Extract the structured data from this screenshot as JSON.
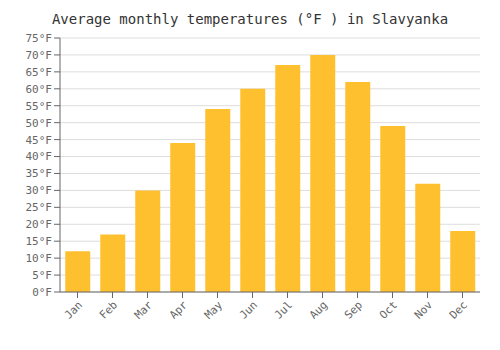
{
  "chart_data": {
    "type": "bar",
    "title": "Average monthly temperatures (°F ) in Slavyanka",
    "categories": [
      "Jan",
      "Feb",
      "Mar",
      "Apr",
      "May",
      "Jun",
      "Jul",
      "Aug",
      "Sep",
      "Oct",
      "Nov",
      "Dec"
    ],
    "values": [
      12,
      17,
      30,
      44,
      54,
      60,
      67,
      70,
      62,
      49,
      32,
      18
    ],
    "color": "#FFC030",
    "ylim": [
      0,
      75
    ],
    "yticks": [
      {
        "value": 0,
        "label": "0°F"
      },
      {
        "value": 5,
        "label": "5°F"
      },
      {
        "value": 10,
        "label": "10°F"
      },
      {
        "value": 15,
        "label": "15°F"
      },
      {
        "value": 20,
        "label": "20°F"
      },
      {
        "value": 25,
        "label": "25°F"
      },
      {
        "value": 30,
        "label": "30°F"
      },
      {
        "value": 35,
        "label": "35°F"
      },
      {
        "value": 40,
        "label": "40°F"
      },
      {
        "value": 45,
        "label": "45°F"
      },
      {
        "value": 50,
        "label": "50°F"
      },
      {
        "value": 55,
        "label": "55°F"
      },
      {
        "value": 60,
        "label": "60°F"
      },
      {
        "value": 65,
        "label": "65°F"
      },
      {
        "value": 70,
        "label": "70°F"
      },
      {
        "value": 75,
        "label": "75°F"
      }
    ],
    "grid": true
  }
}
